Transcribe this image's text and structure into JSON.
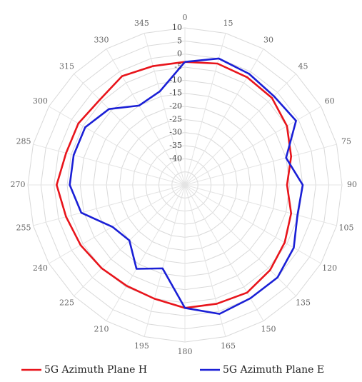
{
  "chart_data": {
    "type": "polar-line",
    "title": "",
    "angle_unit": "degrees",
    "angle_direction": "clockwise",
    "angle_zero": "top",
    "angles": [
      0,
      15,
      30,
      45,
      60,
      75,
      90,
      105,
      120,
      135,
      150,
      165,
      180,
      195,
      210,
      225,
      240,
      255,
      270,
      285,
      300,
      315,
      330,
      345
    ],
    "angle_tick_labels": [
      "0",
      "15",
      "30",
      "45",
      "60",
      "75",
      "90",
      "105",
      "120",
      "135",
      "150",
      "165",
      "180",
      "195",
      "210",
      "225",
      "240",
      "255",
      "270",
      "285",
      "300",
      "315",
      "330",
      "345"
    ],
    "radial_range": [
      -50,
      10
    ],
    "radial_ticks": [
      10,
      5,
      0,
      -5,
      -10,
      -15,
      -20,
      -25,
      -30,
      -35,
      -40
    ],
    "radial_tick_labels": [
      "10",
      "5",
      "0",
      "-5",
      "-10",
      "-15",
      "-20",
      "-25",
      "-30",
      "-35",
      "-40"
    ],
    "grid": true,
    "legend_position": "bottom",
    "series": [
      {
        "name": "5G Azimuth Plane H",
        "color": "#e8141b",
        "points": [
          {
            "angle": 0,
            "value": -3
          },
          {
            "angle": 15,
            "value": -2
          },
          {
            "angle": 30,
            "value": -2.5
          },
          {
            "angle": 45,
            "value": -3
          },
          {
            "angle": 60,
            "value": -5
          },
          {
            "angle": 75,
            "value": -8
          },
          {
            "angle": 90,
            "value": -11
          },
          {
            "angle": 105,
            "value": -8
          },
          {
            "angle": 120,
            "value": -6
          },
          {
            "angle": 135,
            "value": -4
          },
          {
            "angle": 150,
            "value": -2.5
          },
          {
            "angle": 165,
            "value": -3
          },
          {
            "angle": 180,
            "value": -3
          },
          {
            "angle": 195,
            "value": -5
          },
          {
            "angle": 210,
            "value": -5.5
          },
          {
            "angle": 225,
            "value": -5
          },
          {
            "angle": 240,
            "value": -4
          },
          {
            "angle": 255,
            "value": -3
          },
          {
            "angle": 270,
            "value": -1
          },
          {
            "angle": 285,
            "value": -3
          },
          {
            "angle": 300,
            "value": -3
          },
          {
            "angle": 315,
            "value": -4
          },
          {
            "angle": 330,
            "value": -2
          },
          {
            "angle": 345,
            "value": -3
          },
          {
            "angle": 360,
            "value": -3
          }
        ]
      },
      {
        "name": "5G Azimuth Plane E",
        "color": "#1a1fd6",
        "points": [
          {
            "angle": 0,
            "value": -3
          },
          {
            "angle": 15,
            "value": 0
          },
          {
            "angle": 30,
            "value": -1
          },
          {
            "angle": 45,
            "value": -2
          },
          {
            "angle": 60,
            "value": -1
          },
          {
            "angle": 75,
            "value": -10
          },
          {
            "angle": 90,
            "value": -5
          },
          {
            "angle": 105,
            "value": -5.5
          },
          {
            "angle": 120,
            "value": -2
          },
          {
            "angle": 135,
            "value": 0
          },
          {
            "angle": 150,
            "value": 0
          },
          {
            "angle": 165,
            "value": 1
          },
          {
            "angle": 180,
            "value": -3
          },
          {
            "angle": 195,
            "value": -17
          },
          {
            "angle": 210,
            "value": -13
          },
          {
            "angle": 225,
            "value": -20
          },
          {
            "angle": 240,
            "value": -18
          },
          {
            "angle": 255,
            "value": -9
          },
          {
            "angle": 270,
            "value": -6
          },
          {
            "angle": 285,
            "value": -6
          },
          {
            "angle": 300,
            "value": -6
          },
          {
            "angle": 315,
            "value": -9
          },
          {
            "angle": 330,
            "value": -15
          },
          {
            "angle": 345,
            "value": -13
          },
          {
            "angle": 360,
            "value": -3
          }
        ]
      }
    ]
  }
}
